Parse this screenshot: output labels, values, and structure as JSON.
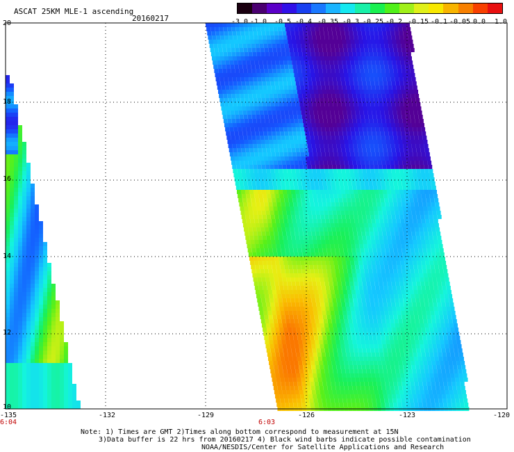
{
  "title": "ASCAT 25KM MLE-1 ascending",
  "date": "20160217",
  "colorbar": {
    "tick_labels": [
      "-3.0",
      "-1.0",
      "-0.5",
      "-0.4",
      "-0.35",
      "-0.3",
      "-0.25",
      "-0.2",
      "-0.15",
      "-0.1",
      "-0.05",
      "0.0",
      "1.0"
    ],
    "colors": [
      "#1a0010",
      "#4a0070",
      "#5b00c8",
      "#3010e8",
      "#1840f0",
      "#1a78ff",
      "#1ab4ff",
      "#14e8f0",
      "#18f0a8",
      "#18f050",
      "#50f018",
      "#a0f018",
      "#e0f018",
      "#f8e800",
      "#f8b400",
      "#f88000",
      "#f84000",
      "#e81010"
    ]
  },
  "map": {
    "lat_labels": [
      "20",
      "18",
      "16",
      "14",
      "12",
      "10"
    ],
    "lon_labels": [
      "-135",
      "-132",
      "-129",
      "-126",
      "-123",
      "-120"
    ],
    "time_labels": [
      "6:04",
      "6:03"
    ]
  },
  "notes": [
    "Note: 1) Times are GMT 2)Times along bottom correspond to measurement at 15N",
    "3)Data buffer is 22 hrs from 20160217 4) Black wind barbs indicate possible contamination",
    "NOAA/NESDIS/Center for Satellite Applications and Research"
  ]
}
